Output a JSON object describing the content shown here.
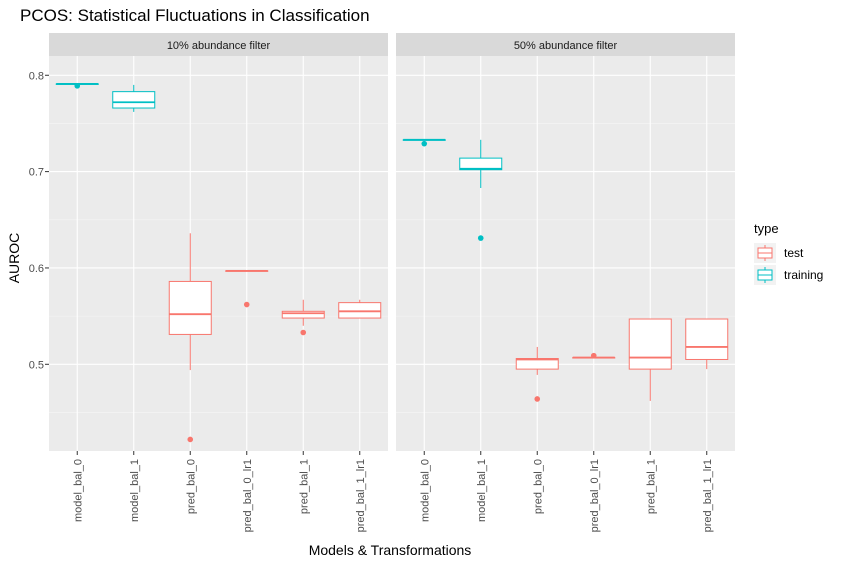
{
  "chart_data": {
    "type": "boxplot",
    "title": "PCOS: Statistical Fluctuations in Classification",
    "xlabel": "Models & Transformations",
    "ylabel": "AUROC",
    "ylim": [
      0.41,
      0.82
    ],
    "yticks": [
      0.5,
      0.6,
      0.7,
      0.8
    ],
    "ytick_labels": [
      "0.5",
      "0.6",
      "0.7",
      "0.8"
    ],
    "categories": [
      "model_bal_0",
      "model_bal_1",
      "pred_bal_0",
      "pred_bal_0_lr1",
      "pred_bal_1",
      "pred_bal_1_lr1"
    ],
    "legend": {
      "title": "type",
      "position": "right",
      "items": [
        {
          "label": "test",
          "color": "#F8766D"
        },
        {
          "label": "training",
          "color": "#00BFC4"
        }
      ]
    },
    "panels": [
      {
        "label": "10% abundance filter",
        "boxes": [
          {
            "category": "model_bal_0",
            "type": "training",
            "min": 0.791,
            "q1": 0.791,
            "median": 0.791,
            "q3": 0.791,
            "max": 0.791,
            "outliers": [
              0.789
            ]
          },
          {
            "category": "model_bal_1",
            "type": "training",
            "min": 0.762,
            "q1": 0.766,
            "median": 0.772,
            "q3": 0.783,
            "max": 0.79,
            "outliers": []
          },
          {
            "category": "pred_bal_0",
            "type": "test",
            "min": 0.494,
            "q1": 0.531,
            "median": 0.552,
            "q3": 0.586,
            "max": 0.636,
            "outliers": [
              0.422
            ]
          },
          {
            "category": "pred_bal_0_lr1",
            "type": "test",
            "min": 0.597,
            "q1": 0.597,
            "median": 0.597,
            "q3": 0.597,
            "max": 0.597,
            "outliers": [
              0.562
            ]
          },
          {
            "category": "pred_bal_1",
            "type": "test",
            "min": 0.54,
            "q1": 0.548,
            "median": 0.553,
            "q3": 0.555,
            "max": 0.567,
            "outliers": [
              0.533
            ]
          },
          {
            "category": "pred_bal_1_lr1",
            "type": "test",
            "min": 0.548,
            "q1": 0.548,
            "median": 0.555,
            "q3": 0.564,
            "max": 0.567,
            "outliers": []
          }
        ]
      },
      {
        "label": "50% abundance filter",
        "boxes": [
          {
            "category": "model_bal_0",
            "type": "training",
            "min": 0.733,
            "q1": 0.733,
            "median": 0.733,
            "q3": 0.733,
            "max": 0.733,
            "outliers": [
              0.729
            ]
          },
          {
            "category": "model_bal_1",
            "type": "training",
            "min": 0.683,
            "q1": 0.702,
            "median": 0.703,
            "q3": 0.714,
            "max": 0.733,
            "outliers": [
              0.631
            ]
          },
          {
            "category": "pred_bal_0",
            "type": "test",
            "min": 0.489,
            "q1": 0.495,
            "median": 0.505,
            "q3": 0.506,
            "max": 0.518,
            "outliers": [
              0.464
            ]
          },
          {
            "category": "pred_bal_0_lr1",
            "type": "test",
            "min": 0.507,
            "q1": 0.507,
            "median": 0.507,
            "q3": 0.507,
            "max": 0.507,
            "outliers": [
              0.509
            ]
          },
          {
            "category": "pred_bal_1",
            "type": "test",
            "min": 0.462,
            "q1": 0.495,
            "median": 0.507,
            "q3": 0.547,
            "max": 0.547,
            "outliers": []
          },
          {
            "category": "pred_bal_1_lr1",
            "type": "test",
            "min": 0.495,
            "q1": 0.505,
            "median": 0.518,
            "q3": 0.547,
            "max": 0.547,
            "outliers": []
          }
        ]
      }
    ]
  }
}
